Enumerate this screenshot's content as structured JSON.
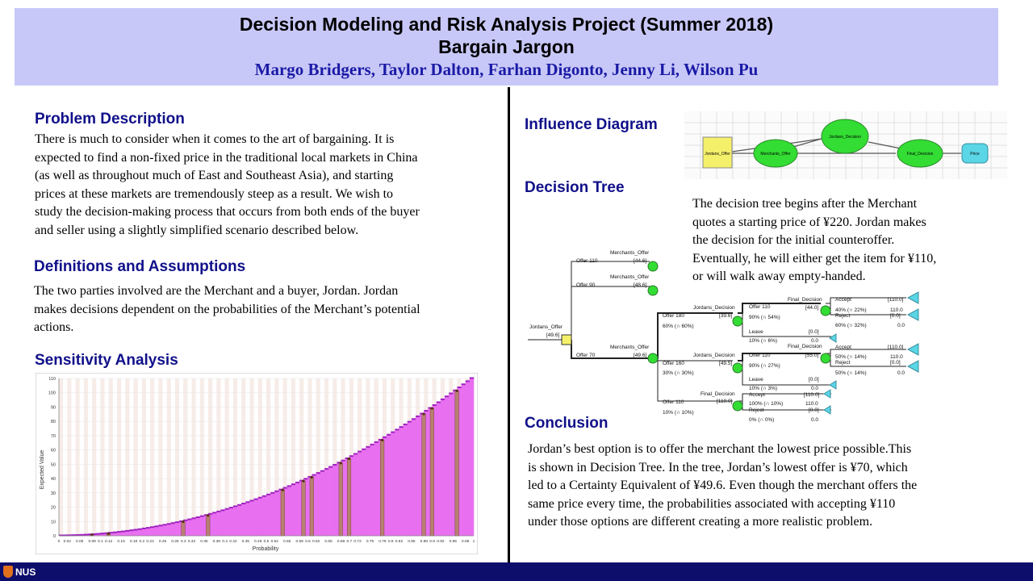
{
  "header": {
    "title": "Decision Modeling and Risk Analysis Project (Summer 2018)",
    "subtitle": "Bargain Jargon",
    "authors": "Margo Bridgers,  Taylor Dalton,  Farhan Digonto,  Jenny Li,  Wilson Pu"
  },
  "problem": {
    "title": "Problem Description",
    "lines": [
      "There is much to consider when it comes to the art of bargaining.  It is",
      "expected to find a non-fixed price in the traditional local markets in China",
      "(as well as throughout much of East and Southeast Asia), and starting",
      "prices at these markets are tremendously steep as a result. We wish to",
      "study the decision-making  process that occurs from both ends of the buyer",
      "and seller using a slightly  simplified  scenario described below."
    ]
  },
  "definitions": {
    "title": "Definitions  and Assumptions",
    "lines": [
      "The two parties involved are the Merchant and a buyer, Jordan. Jordan",
      "makes decisions dependent on the probabilities of the Merchant’s potential",
      "actions."
    ]
  },
  "sensitivity": {
    "title": "Sensitivity  Analysis"
  },
  "influence": {
    "title": "Influence  Diagram",
    "nodes": [
      "Jordans_Offer",
      "Merchants_Offer",
      "Jordans_Decision",
      "Final_Decision",
      "Price"
    ]
  },
  "decision_tree": {
    "title": "Decision  Tree",
    "description": [
      "The decision tree begins after the Merchant",
      "quotes a starting price of ¥220. Jordan makes",
      "the decision for the initial  counteroffer.",
      "Eventually,  he will  either get the item for ¥110,",
      "or will  walk away empty-handed."
    ],
    "labels": {
      "root_name": "Jordans_Offer",
      "root_value": "[49.6]",
      "offer110": "Offer 110",
      "offer90": "Offer 90",
      "offer70": "Offer 70",
      "mo1": "Merchants_Offer",
      "mo1_val": "[44.6]",
      "mo2": "Merchants_Offer",
      "mo2_val": "[48.6]",
      "mo3": "Merchants_Offer",
      "mo3_val": "[49.6]",
      "offer180": "Offer 180",
      "p60": "60% (∩ 60%)",
      "offer160": "Offer 160",
      "p30": "30% (∩ 30%)",
      "offer110b": "Offer 110",
      "p10": "10% (∩ 10%)",
      "jd1": "Jordans_Decision",
      "jd1_val": "[39.6]",
      "jd2": "Jordans_Decision",
      "jd2_val": "[49.5]",
      "fd3": "Final_Decision",
      "fd3_val": "[110.0]",
      "a_offer110": "Offer 110",
      "a_p90": "90% (∩ 54%)",
      "a_leave": "Leave",
      "a_leave_p": "10% (∩ 6%)",
      "a_leave_bv": "[0.0]",
      "a_leave_v": "0.0",
      "a_fd": "Final_Decision",
      "a_fd_val": "[44.0]",
      "a_accept": "Accept",
      "a_accept_bv": "[110.0]",
      "a_accept_p": "40% (∩ 22%)",
      "a_accept_v": "110.0",
      "a_reject": "Reject",
      "a_reject_bv": "[0.0]",
      "a_reject_p": "60% (∩ 32%)",
      "a_reject_v": "0.0",
      "b_offer110": "Offer 110",
      "b_p90": "90% (∩ 27%)",
      "b_leave": "Leave",
      "b_leave_p": "10% (∩ 3%)",
      "b_leave_bv": "[0.0]",
      "b_leave_v": "0.0",
      "b_fd": "Final_Decision",
      "b_fd_val": "[55.0]",
      "b_accept": "Accept",
      "b_accept_bv": "[110.0]",
      "b_accept_p": "50% (∩ 14%)",
      "b_accept_v": "110.0",
      "b_reject": "Reject",
      "b_reject_bv": "[0.0]",
      "b_reject_p": "50% (∩ 14%)",
      "b_reject_v": "0.0",
      "c_accept": "Accept",
      "c_accept_bv": "[110.0]",
      "c_accept_p": "100% (∩ 10%)",
      "c_accept_v": "110.0",
      "c_reject": "Reject",
      "c_reject_bv": "[0.0]",
      "c_reject_p": "0% (∩ 0%)",
      "c_reject_v": "0.0"
    }
  },
  "conclusion": {
    "title": "Conclusion",
    "lines": [
      "Jordan’s best option is to offer the merchant the lowest price possible.This",
      "is shown in Decision Tree. In the tree, Jordan’s lowest offer is ¥70, which",
      "led to a Certainty Equivalent  of ¥49.6. Even though the merchant offers the",
      "same price every time, the probabilities associated with accepting ¥110",
      "under those options are different  creating a more realistic  problem."
    ]
  },
  "footer": {
    "logo_text": "NUS"
  },
  "colors": {
    "header_bg": "#c8c8f8",
    "heading": "#10108a",
    "footer_bg": "#0d0d6b",
    "bar_fill": "#e870f0",
    "bar_highlight": "#b88070",
    "decision_node": "#f5f06a",
    "chance_node": "#33dd33",
    "terminal_node": "#5ad6e6"
  },
  "chart_data": {
    "type": "bar",
    "xlabel": "Probability",
    "ylabel": "Expected Value",
    "ylim": [
      0,
      110
    ],
    "xlim": [
      0,
      1
    ],
    "grid": true,
    "yticks": [
      0,
      10,
      20,
      30,
      40,
      50,
      60,
      70,
      80,
      90,
      100,
      110
    ],
    "xticks": [
      "0",
      "0.02",
      "0.05",
      "0.08",
      "0.1",
      "0.12",
      "0.15",
      "0.18",
      "0.2",
      "0.22",
      "0.25",
      "0.28",
      "0.3",
      "0.32",
      "0.35",
      "0.38",
      "0.4",
      "0.42",
      "0.45",
      "0.48",
      "0.5",
      "0.52",
      "0.55",
      "0.58",
      "0.6",
      "0.62",
      "0.65",
      "0.68",
      "0.7",
      "0.72",
      "0.75",
      "0.78",
      "0.8",
      "0.82",
      "0.85",
      "0.88",
      "0.9",
      "0.92",
      "0.95",
      "0.98",
      "1"
    ],
    "function": "110 * p^2",
    "n_bars": 100,
    "highlight_p": [
      0.08,
      0.12,
      0.3,
      0.36,
      0.54,
      0.59,
      0.61,
      0.68,
      0.7,
      0.78,
      0.88,
      0.9,
      0.96
    ]
  }
}
